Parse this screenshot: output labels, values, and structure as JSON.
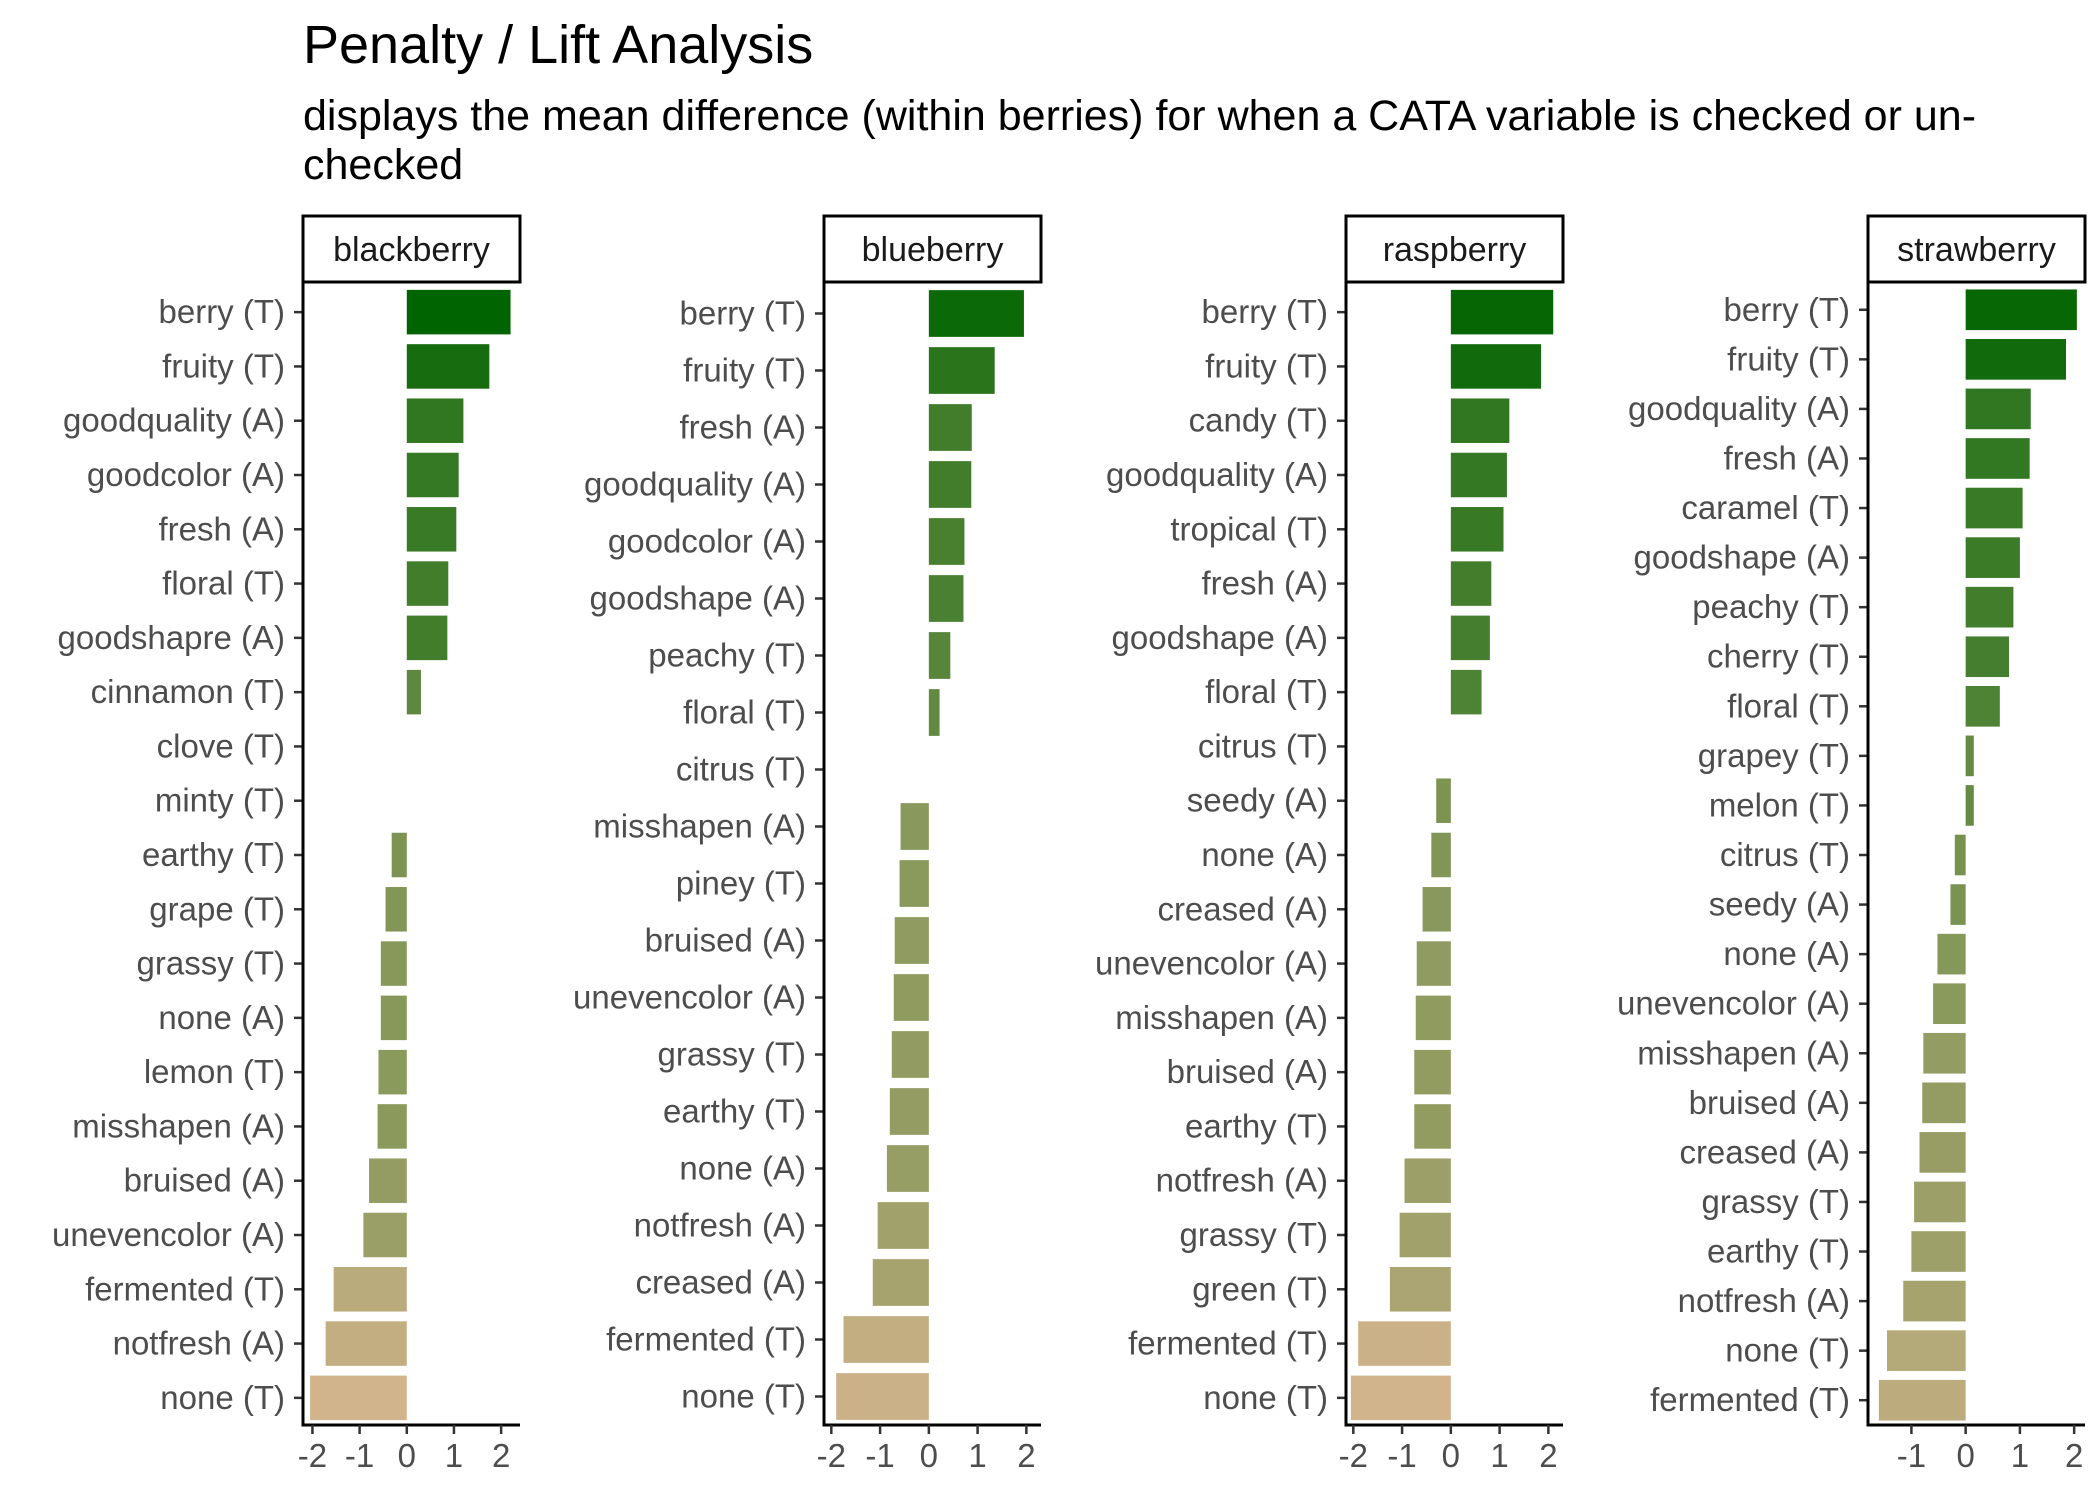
{
  "chart_data": {
    "type": "bar",
    "orientation": "horizontal",
    "title": "Penalty / Lift Analysis",
    "subtitle": "displays the mean difference (within berries) for when a CATA variable is checked or un-checked",
    "grid": false,
    "color_scale": {
      "positive": "#006400",
      "negative": "#d2b48c"
    },
    "panels": [
      {
        "name": "blackberry",
        "xlim": [
          -2.2,
          2.4
        ],
        "xticks": [
          -2,
          -1,
          0,
          1,
          2
        ],
        "xtick_labels": [
          "-2",
          "-1",
          "0",
          "1",
          "2"
        ],
        "categories": [
          "berry (T)",
          "fruity (T)",
          "goodquality (A)",
          "goodcolor (A)",
          "fresh (A)",
          "floral (T)",
          "goodshapre (A)",
          "cinnamon (T)",
          "clove (T)",
          "minty (T)",
          "earthy (T)",
          "grape (T)",
          "grassy (T)",
          "none (A)",
          "lemon (T)",
          "misshapen (A)",
          "bruised (A)",
          "unevencolor (A)",
          "fermented (T)",
          "notfresh (A)",
          "none (T)"
        ],
        "values": [
          2.2,
          1.75,
          1.2,
          1.1,
          1.05,
          0.88,
          0.86,
          0.3,
          0.0,
          0.0,
          -0.32,
          -0.45,
          -0.55,
          -0.55,
          -0.6,
          -0.62,
          -0.8,
          -0.92,
          -1.55,
          -1.72,
          -2.05
        ]
      },
      {
        "name": "blueberry",
        "xlim": [
          -2.15,
          2.3
        ],
        "xticks": [
          -2,
          -1,
          0,
          1,
          2
        ],
        "xtick_labels": [
          "-2",
          "-1",
          "0",
          "1",
          "2"
        ],
        "categories": [
          "berry (T)",
          "fruity (T)",
          "fresh (A)",
          "goodquality (A)",
          "goodcolor (A)",
          "goodshape (A)",
          "peachy (T)",
          "floral (T)",
          "citrus (T)",
          "misshapen (A)",
          "piney (T)",
          "bruised (A)",
          "unevencolor (A)",
          "grassy (T)",
          "earthy (T)",
          "none (A)",
          "notfresh (A)",
          "creased (A)",
          "fermented (T)",
          "none (T)"
        ],
        "values": [
          1.95,
          1.35,
          0.88,
          0.87,
          0.73,
          0.71,
          0.44,
          0.22,
          0.0,
          -0.58,
          -0.6,
          -0.7,
          -0.72,
          -0.76,
          -0.8,
          -0.86,
          -1.05,
          -1.15,
          -1.75,
          -1.9
        ]
      },
      {
        "name": "raspberry",
        "xlim": [
          -2.15,
          2.3
        ],
        "xticks": [
          -2,
          -1,
          0,
          1,
          2
        ],
        "xtick_labels": [
          "-2",
          "-1",
          "0",
          "1",
          "2"
        ],
        "categories": [
          "berry (T)",
          "fruity (T)",
          "candy (T)",
          "goodquality (A)",
          "tropical (T)",
          "fresh (A)",
          "goodshape (A)",
          "floral (T)",
          "citrus (T)",
          "seedy (A)",
          "none (A)",
          "creased (A)",
          "unevencolor (A)",
          "misshapen (A)",
          "bruised (A)",
          "earthy (T)",
          "notfresh (A)",
          "grassy (T)",
          "green (T)",
          "fermented (T)",
          "none (T)"
        ],
        "values": [
          2.1,
          1.85,
          1.2,
          1.15,
          1.08,
          0.83,
          0.8,
          0.63,
          0.0,
          -0.3,
          -0.4,
          -0.58,
          -0.7,
          -0.72,
          -0.75,
          -0.75,
          -0.95,
          -1.05,
          -1.25,
          -1.9,
          -2.05
        ]
      },
      {
        "name": "strawberry",
        "xlim": [
          -1.8,
          2.2
        ],
        "xticks": [
          -1,
          0,
          1,
          2
        ],
        "xtick_labels": [
          "-1",
          "0",
          "1",
          "2"
        ],
        "categories": [
          "berry (T)",
          "fruity (T)",
          "goodquality (A)",
          "fresh (A)",
          "caramel (T)",
          "goodshape (A)",
          "peachy (T)",
          "cherry (T)",
          "floral (T)",
          "grapey (T)",
          "melon (T)",
          "citrus (T)",
          "seedy (A)",
          "none (A)",
          "unevencolor (A)",
          "misshapen (A)",
          "bruised (A)",
          "creased (A)",
          "grassy (T)",
          "earthy (T)",
          "notfresh (A)",
          "none (T)",
          "fermented (T)"
        ],
        "values": [
          2.05,
          1.85,
          1.2,
          1.18,
          1.05,
          1.0,
          0.88,
          0.8,
          0.63,
          0.15,
          0.15,
          -0.2,
          -0.28,
          -0.52,
          -0.6,
          -0.78,
          -0.8,
          -0.85,
          -0.95,
          -1.0,
          -1.15,
          -1.45,
          -1.6
        ]
      }
    ]
  }
}
